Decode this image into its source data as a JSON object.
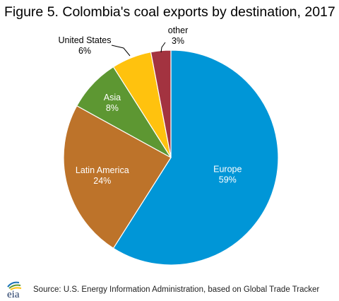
{
  "title": "Figure 5. Colombia's coal exports by destination, 2017",
  "source": "Source: U.S. Energy Information Administration, based on Global Trade Tracker",
  "logo_text": "eia",
  "chart_data": {
    "type": "pie",
    "unit": "%",
    "slices": [
      {
        "name": "Europe",
        "value": 59,
        "label": "59%",
        "color": "#0096d7"
      },
      {
        "name": "Latin America",
        "value": 24,
        "label": "24%",
        "color": "#bd732a"
      },
      {
        "name": "Asia",
        "value": 8,
        "label": "8%",
        "color": "#5d9732"
      },
      {
        "name": "United States",
        "value": 6,
        "label": "6%",
        "color": "#ffc20e"
      },
      {
        "name": "other",
        "value": 3,
        "label": "3%",
        "color": "#a33340"
      }
    ]
  }
}
